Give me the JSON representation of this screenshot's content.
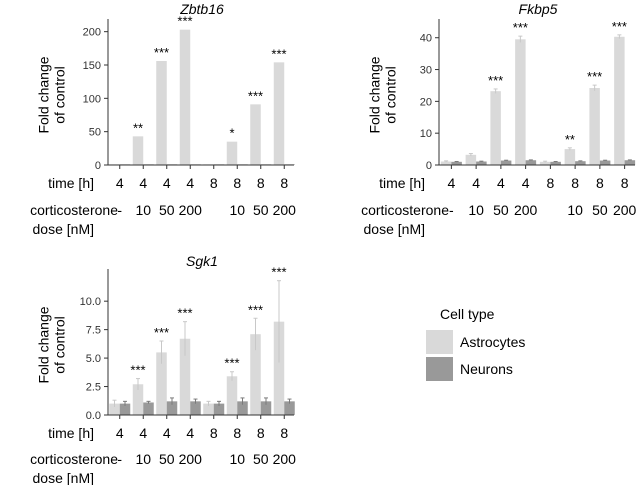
{
  "row_labels": {
    "time": "time [h]",
    "dose_line1": "corticosterone",
    "dose_line2": "dose [nM]"
  },
  "colors": {
    "astrocytes": "#d9d9d9",
    "neurons": "#999999",
    "axis": "#333333",
    "error": "#d0d0d0"
  },
  "legend": {
    "title": "Cell type",
    "items": [
      {
        "label": "Astrocytes",
        "color": "#d9d9d9"
      },
      {
        "label": "Neurons",
        "color": "#999999"
      }
    ]
  },
  "chart_data": [
    {
      "type": "bar",
      "title": "Zbtb16",
      "ylabel": "Fold change of control",
      "ylabel_lines": [
        "Fold change",
        "of control"
      ],
      "ylim": [
        0,
        210
      ],
      "yticks": [
        0,
        50,
        100,
        150,
        200
      ],
      "ytick_labels": [
        "0",
        "50",
        "100",
        "150",
        "200"
      ],
      "categories": [
        "4 h, -",
        "4 h, 10",
        "4 h, 50",
        "4 h, 200",
        "8 h, -",
        "8 h, 10",
        "8 h, 50",
        "8 h, 200"
      ],
      "time": [
        "4",
        "4",
        "4",
        "4",
        "8",
        "8",
        "8",
        "8"
      ],
      "dose": [
        "-",
        "10",
        "50",
        "200",
        "",
        "10",
        "50",
        "200"
      ],
      "series": [
        {
          "name": "Astrocytes",
          "values": [
            1,
            43,
            156,
            203,
            1,
            35,
            91,
            154
          ],
          "errors": [
            0,
            0,
            0,
            0,
            0,
            0,
            0,
            0
          ]
        },
        {
          "name": "Neurons",
          "values": [
            1,
            1,
            1,
            1,
            1,
            1,
            1,
            1
          ],
          "errors": [
            0,
            0,
            0,
            0,
            0,
            0,
            0,
            0
          ]
        }
      ],
      "significance": [
        "",
        "**",
        "***",
        "***",
        "",
        "*",
        "***",
        "***"
      ]
    },
    {
      "type": "bar",
      "title": "Fkbp5",
      "ylabel": "Fold change of control",
      "ylabel_lines": [
        "Fold change",
        "of control"
      ],
      "ylim": [
        0,
        44
      ],
      "yticks": [
        0,
        10,
        20,
        30,
        40
      ],
      "ytick_labels": [
        "0",
        "10",
        "20",
        "30",
        "40"
      ],
      "categories": [
        "4 h, -",
        "4 h, 10",
        "4 h, 50",
        "4 h, 200",
        "8 h, -",
        "8 h, 10",
        "8 h, 50",
        "8 h, 200"
      ],
      "time": [
        "4",
        "4",
        "4",
        "4",
        "8",
        "8",
        "8",
        "8"
      ],
      "dose": [
        "-",
        "10",
        "50",
        "200",
        "",
        "10",
        "50",
        "200"
      ],
      "series": [
        {
          "name": "Astrocytes",
          "values": [
            1.1,
            3.2,
            23.2,
            39.5,
            1.0,
            5.0,
            24.2,
            40.3
          ],
          "errors": [
            0.2,
            0.4,
            0.7,
            1.0,
            0.2,
            0.4,
            0.9,
            0.6
          ]
        },
        {
          "name": "Neurons",
          "values": [
            1.0,
            1.1,
            1.4,
            1.5,
            1.0,
            1.2,
            1.4,
            1.5
          ],
          "errors": [
            0.1,
            0.1,
            0.1,
            0.1,
            0.1,
            0.1,
            0.1,
            0.1
          ]
        }
      ],
      "significance": [
        "",
        "",
        "***",
        "***",
        "",
        "**",
        "***",
        "***"
      ]
    },
    {
      "type": "bar",
      "title": "Sgk1",
      "ylabel": "Fold change of control",
      "ylabel_lines": [
        "Fold change",
        "of control"
      ],
      "ylim": [
        0,
        12.3
      ],
      "yticks": [
        0,
        2.5,
        5,
        7.5,
        10
      ],
      "ytick_labels": [
        "0.0",
        "2.5",
        "5.0",
        "7.5",
        "10.0"
      ],
      "categories": [
        "4 h, -",
        "4 h, 10",
        "4 h, 50",
        "4 h, 200",
        "8 h, -",
        "8 h, 10",
        "8 h, 50",
        "8 h, 200"
      ],
      "time": [
        "4",
        "4",
        "4",
        "4",
        "8",
        "8",
        "8",
        "8"
      ],
      "dose": [
        "-",
        "10",
        "50",
        "200",
        "",
        "10",
        "50",
        "200"
      ],
      "series": [
        {
          "name": "Astrocytes",
          "values": [
            1.0,
            2.7,
            5.5,
            6.7,
            1.0,
            3.4,
            7.1,
            8.2
          ],
          "errors": [
            0.3,
            0.5,
            1.0,
            1.5,
            0.2,
            0.4,
            1.4,
            3.6
          ]
        },
        {
          "name": "Neurons",
          "values": [
            1.0,
            1.1,
            1.2,
            1.2,
            1.0,
            1.2,
            1.2,
            1.2
          ],
          "errors": [
            0.2,
            0.1,
            0.3,
            0.2,
            0.2,
            0.3,
            0.3,
            0.2
          ]
        }
      ],
      "significance": [
        "",
        "***",
        "***",
        "***",
        "",
        "***",
        "***",
        "***"
      ]
    }
  ]
}
